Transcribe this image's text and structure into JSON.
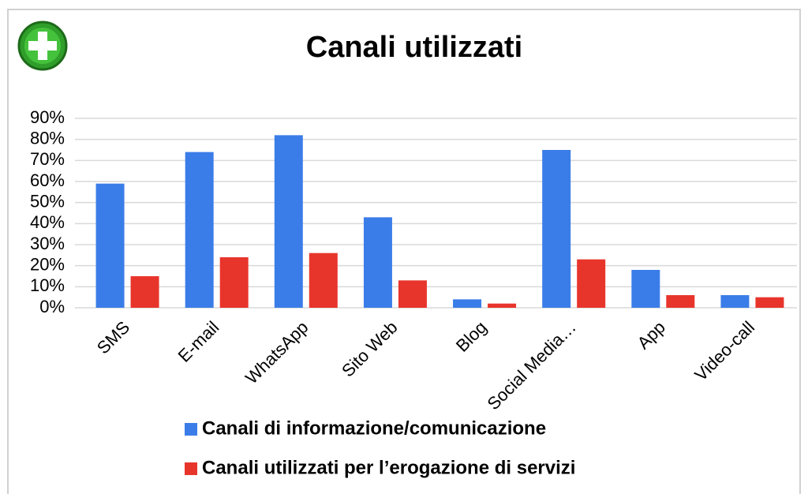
{
  "chart_data": {
    "type": "bar",
    "title": "Canali utilizzati",
    "categories": [
      "SMS",
      "E-mail",
      "WhatsApp",
      "Sito Web",
      "Blog",
      "Social Media…",
      "App",
      "Video-call"
    ],
    "series": [
      {
        "name": "Canali di informazione/comunicazione",
        "color": "#3b7de8",
        "values": [
          59,
          74,
          82,
          43,
          4,
          75,
          18,
          6
        ]
      },
      {
        "name": "Canali utilizzati per l’erogazione di servizi",
        "color": "#e8352c",
        "values": [
          15,
          24,
          26,
          13,
          2,
          23,
          6,
          5
        ]
      }
    ],
    "ylim": [
      0,
      90
    ],
    "yticks": [
      {
        "value": 0,
        "label": "0%"
      },
      {
        "value": 10,
        "label": "10%"
      },
      {
        "value": 20,
        "label": "20%"
      },
      {
        "value": 30,
        "label": "30%"
      },
      {
        "value": 40,
        "label": "40%"
      },
      {
        "value": 50,
        "label": "50%"
      },
      {
        "value": 60,
        "label": "60%"
      },
      {
        "value": 70,
        "label": "70%"
      },
      {
        "value": 80,
        "label": "80%"
      },
      {
        "value": 90,
        "label": "90%"
      }
    ],
    "grid": true,
    "legend": "bottom"
  }
}
